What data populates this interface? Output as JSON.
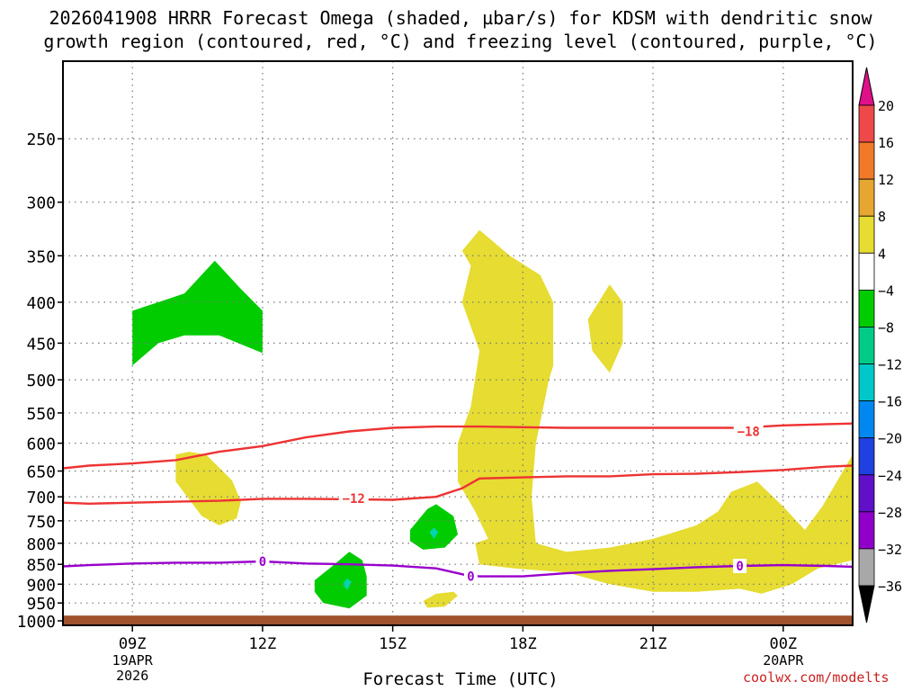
{
  "title_line1": "2026041908 HRRR Forecast Omega (shaded, µbar/s) for KDSM with dendritic snow",
  "title_line2": "growth region (contoured, red, °C) and freezing level (contoured, purple, °C)",
  "xlabel": "Forecast Time (UTC)",
  "credit": "coolwx.com/modelts",
  "colors": {
    "green": "#00cc00",
    "yellow": "#e6dc32",
    "cyan": "#00d6b0",
    "red_contour": "#ee3333",
    "purple_contour": "#9900cc",
    "ground": "#a0522d",
    "grid": "#777777"
  },
  "chart_data": {
    "type": "time-height cross section",
    "grid": true,
    "x_axis": {
      "units": "hours UTC (from 19APR 00Z)",
      "range": [
        7.4,
        25.6
      ],
      "ticks": [
        {
          "hour": 9,
          "label": "09Z",
          "sub": [
            "19APR",
            "2026"
          ]
        },
        {
          "hour": 12,
          "label": "12Z",
          "sub": []
        },
        {
          "hour": 15,
          "label": "15Z",
          "sub": []
        },
        {
          "hour": 18,
          "label": "18Z",
          "sub": []
        },
        {
          "hour": 21,
          "label": "21Z",
          "sub": []
        },
        {
          "hour": 24,
          "label": "00Z",
          "sub": [
            "20APR"
          ]
        }
      ]
    },
    "y_axis": {
      "units": "hPa",
      "scale": "log-pressure",
      "range": [
        200,
        1013
      ],
      "ticks": [
        250,
        300,
        350,
        400,
        450,
        500,
        550,
        600,
        650,
        700,
        750,
        800,
        850,
        900,
        950,
        1000
      ]
    },
    "colorbar": {
      "labels": [
        "20",
        "16",
        "12",
        "8",
        "4",
        "−4",
        "−8",
        "−12",
        "−16",
        "−20",
        "−24",
        "−28",
        "−32",
        "−36"
      ],
      "top_color": "#e0108a",
      "bottom_color": "#000000",
      "bins": [
        "#ee4848",
        "#f07a28",
        "#e6a632",
        "#e6dc32",
        "#ffffff",
        "#00cc00",
        "#00cc88",
        "#00c8c8",
        "#0088f0",
        "#2040e0",
        "#6010c8",
        "#9000c8",
        "#a8a8a8"
      ]
    },
    "shaded_regions": [
      {
        "name": "omega-neg-green-1",
        "color": "#00cc00",
        "points": [
          [
            9.0,
            480
          ],
          [
            9.6,
            450
          ],
          [
            10.2,
            440
          ],
          [
            11.0,
            440
          ],
          [
            12.0,
            463
          ],
          [
            12.0,
            410
          ],
          [
            11.5,
            385
          ],
          [
            10.9,
            355
          ],
          [
            10.2,
            390
          ],
          [
            9.6,
            400
          ],
          [
            9.0,
            410
          ]
        ]
      },
      {
        "name": "omega-pos-yellow-1",
        "color": "#e6dc32",
        "points": [
          [
            10.0,
            620
          ],
          [
            10.3,
            615
          ],
          [
            10.7,
            620
          ],
          [
            11.3,
            668
          ],
          [
            11.5,
            710
          ],
          [
            11.4,
            745
          ],
          [
            11.0,
            760
          ],
          [
            10.6,
            740
          ],
          [
            10.0,
            670
          ]
        ]
      },
      {
        "name": "omega-pos-yellow-2",
        "color": "#e6dc32",
        "points": [
          [
            16.6,
            345
          ],
          [
            17.0,
            325
          ],
          [
            17.7,
            350
          ],
          [
            18.4,
            370
          ],
          [
            18.7,
            400
          ],
          [
            18.7,
            480
          ],
          [
            18.6,
            500
          ],
          [
            18.3,
            600
          ],
          [
            18.2,
            700
          ],
          [
            18.3,
            800
          ],
          [
            19.0,
            820
          ],
          [
            20.0,
            810
          ],
          [
            21.0,
            790
          ],
          [
            22.0,
            760
          ],
          [
            22.5,
            730
          ],
          [
            22.8,
            690
          ],
          [
            23.4,
            670
          ],
          [
            24.0,
            720
          ],
          [
            24.5,
            770
          ],
          [
            24.9,
            720
          ],
          [
            25.6,
            620
          ],
          [
            25.6,
            840
          ],
          [
            24.8,
            860
          ],
          [
            24.2,
            900
          ],
          [
            23.5,
            925
          ],
          [
            23.0,
            912
          ],
          [
            22.0,
            920
          ],
          [
            21.0,
            920
          ],
          [
            20.0,
            900
          ],
          [
            19.0,
            870
          ],
          [
            17.8,
            860
          ],
          [
            17.0,
            850
          ],
          [
            16.9,
            800
          ],
          [
            17.2,
            790
          ],
          [
            16.9,
            730
          ],
          [
            16.5,
            670
          ],
          [
            16.5,
            600
          ],
          [
            16.8,
            540
          ],
          [
            17.0,
            460
          ],
          [
            16.6,
            400
          ],
          [
            16.8,
            360
          ]
        ]
      },
      {
        "name": "omega-pos-yellow-3",
        "color": "#e6dc32",
        "points": [
          [
            19.5,
            420
          ],
          [
            20.0,
            380
          ],
          [
            20.3,
            400
          ],
          [
            20.3,
            450
          ],
          [
            20.0,
            490
          ],
          [
            19.6,
            460
          ]
        ]
      },
      {
        "name": "omega-pos-yellow-4",
        "color": "#e6dc32",
        "points": [
          [
            15.7,
            945
          ],
          [
            16.0,
            925
          ],
          [
            16.4,
            920
          ],
          [
            16.5,
            930
          ],
          [
            16.2,
            960
          ],
          [
            15.8,
            963
          ]
        ]
      },
      {
        "name": "omega-neg-green-2",
        "color": "#00cc00",
        "points": [
          [
            15.4,
            770
          ],
          [
            15.8,
            725
          ],
          [
            16.0,
            715
          ],
          [
            16.4,
            740
          ],
          [
            16.5,
            780
          ],
          [
            16.2,
            810
          ],
          [
            15.7,
            815
          ],
          [
            15.4,
            795
          ]
        ]
      },
      {
        "name": "omega-neg-green-3",
        "color": "#00cc00",
        "points": [
          [
            13.2,
            890
          ],
          [
            13.6,
            855
          ],
          [
            14.0,
            820
          ],
          [
            14.3,
            840
          ],
          [
            14.4,
            880
          ],
          [
            14.4,
            930
          ],
          [
            14.0,
            965
          ],
          [
            13.4,
            950
          ],
          [
            13.2,
            920
          ]
        ]
      },
      {
        "name": "omega-neg-cyan-1",
        "color": "#00d6b0",
        "points": [
          [
            15.95,
            765
          ],
          [
            16.05,
            775
          ],
          [
            15.95,
            790
          ],
          [
            15.85,
            775
          ]
        ]
      },
      {
        "name": "omega-neg-cyan-2",
        "color": "#00d6b0",
        "points": [
          [
            13.95,
            885
          ],
          [
            14.05,
            895
          ],
          [
            13.95,
            915
          ],
          [
            13.85,
            900
          ]
        ]
      }
    ],
    "contours": [
      {
        "name": "dgz-minus-18",
        "label": "−18",
        "color": "#ee3333",
        "label_at": [
          23.2,
          580
        ],
        "points": [
          [
            7.4,
            645
          ],
          [
            8.0,
            640
          ],
          [
            9.0,
            636
          ],
          [
            10.0,
            630
          ],
          [
            11.0,
            615
          ],
          [
            12.0,
            605
          ],
          [
            13.0,
            590
          ],
          [
            14.0,
            580
          ],
          [
            15.0,
            574
          ],
          [
            16.0,
            572
          ],
          [
            17.0,
            572
          ],
          [
            18.0,
            573
          ],
          [
            19.0,
            574
          ],
          [
            20.0,
            574
          ],
          [
            21.0,
            574
          ],
          [
            22.0,
            574
          ],
          [
            23.0,
            574
          ],
          [
            24.0,
            570
          ],
          [
            25.0,
            568
          ],
          [
            25.6,
            567
          ]
        ]
      },
      {
        "name": "dgz-minus-12",
        "label": "−12",
        "color": "#ee3333",
        "label_at": [
          14.1,
          703
        ],
        "points": [
          [
            7.4,
            712
          ],
          [
            8.0,
            714
          ],
          [
            9.0,
            712
          ],
          [
            10.0,
            710
          ],
          [
            11.0,
            708
          ],
          [
            12.0,
            704
          ],
          [
            13.0,
            704
          ],
          [
            14.0,
            705
          ],
          [
            15.0,
            706
          ],
          [
            16.0,
            700
          ],
          [
            16.6,
            683
          ],
          [
            17.0,
            664
          ],
          [
            18.0,
            662
          ],
          [
            19.0,
            660
          ],
          [
            20.0,
            660
          ],
          [
            21.0,
            656
          ],
          [
            22.0,
            655
          ],
          [
            23.0,
            652
          ],
          [
            24.0,
            648
          ],
          [
            25.0,
            642
          ],
          [
            25.6,
            640
          ]
        ]
      },
      {
        "name": "freezing-level-0",
        "label": "0",
        "color": "#9900cc",
        "label_at": [
          12.0,
          843
        ],
        "points": [
          [
            7.4,
            855
          ],
          [
            8.0,
            852
          ],
          [
            9.0,
            848
          ],
          [
            10.0,
            846
          ],
          [
            11.0,
            846
          ],
          [
            12.0,
            843
          ],
          [
            13.0,
            848
          ],
          [
            14.0,
            850
          ],
          [
            15.0,
            853
          ],
          [
            16.0,
            860
          ],
          [
            16.7,
            877
          ],
          [
            17.0,
            880
          ],
          [
            18.0,
            880
          ],
          [
            19.0,
            872
          ],
          [
            20.0,
            866
          ],
          [
            21.0,
            862
          ],
          [
            22.0,
            857
          ],
          [
            23.0,
            854
          ],
          [
            24.0,
            852
          ],
          [
            25.0,
            854
          ],
          [
            25.6,
            856
          ]
        ],
        "extra_labels": [
          [
            16.8,
            880
          ],
          [
            23.0,
            854
          ]
        ]
      }
    ],
    "ground": {
      "color": "#a0522d",
      "top_hPa": 985
    }
  }
}
